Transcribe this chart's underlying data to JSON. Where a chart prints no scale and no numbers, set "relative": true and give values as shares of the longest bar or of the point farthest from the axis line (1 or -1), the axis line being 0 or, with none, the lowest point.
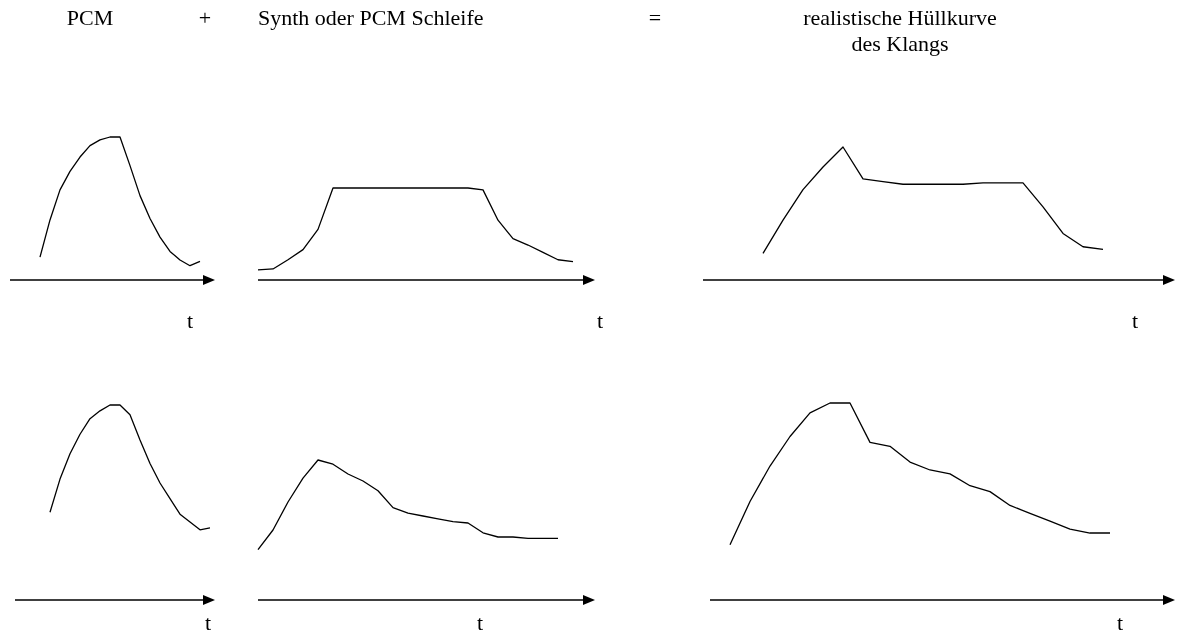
{
  "chart_data": [
    {
      "type": "line",
      "relative": true,
      "title": "PCM",
      "xlabel": "t",
      "categories": [
        null,
        null,
        null,
        null,
        null,
        null,
        null,
        null,
        null,
        null,
        null,
        null,
        null,
        null,
        null,
        null,
        null,
        null,
        null,
        null,
        null
      ],
      "series": [
        {
          "color": "#000000",
          "values": [
            null,
            null,
            null,
            0.16,
            0.42,
            0.63,
            0.76,
            0.86,
            0.94,
            0.98,
            1,
            1,
            0.8,
            0.59,
            0.43,
            0.3,
            0.2,
            0.14,
            0.1,
            0.13,
            null
          ]
        }
      ]
    },
    {
      "type": "line",
      "relative": true,
      "title": "Synth oder PCM Schleife",
      "annotations": [
        "+"
      ],
      "xlabel": "t",
      "categories": [
        null,
        null,
        null,
        null,
        null,
        null,
        null,
        null,
        null,
        null,
        null,
        null,
        null,
        null,
        null,
        null,
        null,
        null,
        null,
        null,
        null,
        null,
        null
      ],
      "series": [
        {
          "color": "#000000",
          "values": [
            0.11,
            0.12,
            0.22,
            0.33,
            0.55,
            1,
            1,
            1,
            1,
            1,
            1,
            1,
            1,
            1,
            1,
            0.98,
            0.65,
            0.45,
            0.38,
            0.3,
            0.22,
            0.2,
            null
          ]
        }
      ]
    },
    {
      "type": "line",
      "relative": true,
      "title": "realistische Hüllkurve\ndes Klangs",
      "annotations": [
        "="
      ],
      "xlabel": "t",
      "categories": [
        null,
        null,
        null,
        null,
        null,
        null,
        null,
        null,
        null,
        null,
        null,
        null,
        null,
        null,
        null,
        null,
        null,
        null,
        null,
        null,
        null,
        null,
        null,
        null
      ],
      "series": [
        {
          "color": "#000000",
          "values": [
            null,
            null,
            null,
            0.2,
            0.45,
            0.68,
            0.85,
            1,
            0.76,
            0.74,
            0.72,
            0.72,
            0.72,
            0.72,
            0.73,
            0.73,
            0.73,
            0.55,
            0.35,
            0.25,
            0.23,
            null,
            null,
            null
          ]
        }
      ]
    },
    {
      "type": "line",
      "relative": true,
      "xlabel": "t",
      "categories": [
        null,
        null,
        null,
        null,
        null,
        null,
        null,
        null,
        null,
        null,
        null,
        null,
        null,
        null,
        null,
        null,
        null,
        null,
        null,
        null,
        null
      ],
      "series": [
        {
          "color": "#000000",
          "values": [
            null,
            null,
            null,
            null,
            0.45,
            0.62,
            0.75,
            0.85,
            0.93,
            0.97,
            1,
            1,
            0.95,
            0.82,
            0.7,
            0.6,
            0.52,
            0.44,
            0.4,
            0.36,
            0.37
          ]
        }
      ]
    },
    {
      "type": "line",
      "relative": true,
      "xlabel": "t",
      "categories": [
        null,
        null,
        null,
        null,
        null,
        null,
        null,
        null,
        null,
        null,
        null,
        null,
        null,
        null,
        null,
        null,
        null,
        null,
        null,
        null,
        null,
        null,
        null
      ],
      "series": [
        {
          "color": "#000000",
          "values": [
            0.36,
            0.5,
            0.7,
            0.87,
            1,
            0.97,
            0.9,
            0.85,
            0.78,
            0.66,
            0.62,
            0.6,
            0.58,
            0.56,
            0.55,
            0.48,
            0.45,
            0.45,
            0.44,
            0.44,
            0.44,
            null,
            null
          ]
        }
      ]
    },
    {
      "type": "line",
      "relative": true,
      "xlabel": "t",
      "categories": [
        null,
        null,
        null,
        null,
        null,
        null,
        null,
        null,
        null,
        null,
        null,
        null,
        null,
        null,
        null,
        null,
        null,
        null,
        null,
        null,
        null,
        null,
        null,
        null
      ],
      "series": [
        {
          "color": "#000000",
          "values": [
            null,
            0.28,
            0.5,
            0.68,
            0.83,
            0.95,
            1,
            1,
            0.8,
            0.78,
            0.7,
            0.66,
            0.64,
            0.58,
            0.55,
            0.48,
            0.44,
            0.4,
            0.36,
            0.34,
            0.34,
            null,
            null,
            null
          ]
        }
      ]
    }
  ]
}
